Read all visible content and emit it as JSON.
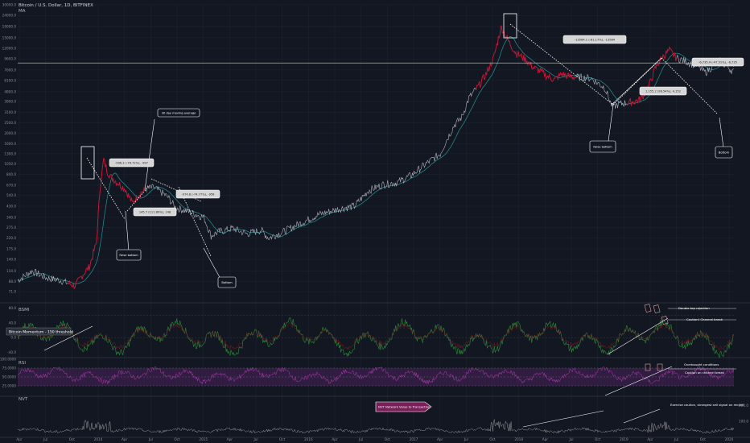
{
  "header": {
    "symbol_line": "Bitcoin / U.S. Dollar, 1D, BITFINEX",
    "indicator_line": "MA"
  },
  "colors": {
    "background": "#131722",
    "grid": "#1f2533",
    "price": "#b2b5be",
    "price_highlight": "#c8102e",
    "ma": "#2bb3b3",
    "annotation": "#ffffff",
    "smi": "#2e8b3a",
    "rsi": "#b03ab0",
    "rsi_band": "#3a1f4a",
    "nvt": "#9a9a9a",
    "nvt_label_bg": "#7a1f5a"
  },
  "chart_data": [
    {
      "type": "line",
      "pane": "price",
      "title": "Bitcoin / U.S. Dollar, 1D, BITFINEX",
      "y_scale": "log",
      "ylim": [
        60,
        30000
      ],
      "y_ticks": [
        "30000.0",
        "24000.0",
        "19000.0",
        "15000.0",
        "12000.0",
        "9600.0",
        "7600.0",
        "6100.0",
        "4800.0",
        "3900.0",
        "3100.0",
        "2500.0",
        "2000.0",
        "1600.0",
        "1300.0",
        "1050.0",
        "840.0",
        "670.0",
        "540.0",
        "430.0",
        "340.0",
        "275.0",
        "220.0",
        "175.0",
        "140.0",
        "110.0",
        "88.0",
        "71.0"
      ],
      "x_ticks": [
        "Apr",
        "Jul",
        "Oct",
        "2014",
        "Apr",
        "Jul",
        "Oct",
        "2015",
        "Apr",
        "Jul",
        "Oct",
        "2016",
        "Apr",
        "Jul",
        "Oct",
        "2017",
        "Apr",
        "Jul",
        "Oct",
        "2018",
        "Apr",
        "Jul",
        "Oct",
        "2019",
        "Apr",
        "Jul",
        "Oct",
        "2020"
      ],
      "series": [
        {
          "values": [
            [
              0.0,
              90
            ],
            [
              0.02,
              110
            ],
            [
              0.04,
              95
            ],
            [
              0.06,
              90
            ],
            [
              0.08,
              80
            ],
            [
              0.09,
              100
            ],
            [
              0.1,
              120
            ],
            [
              0.11,
              200
            ],
            [
              0.115,
              650
            ],
            [
              0.118,
              900
            ],
            [
              0.12,
              1150
            ],
            [
              0.125,
              900
            ],
            [
              0.13,
              800
            ],
            [
              0.14,
              700
            ],
            [
              0.15,
              620
            ],
            [
              0.16,
              460
            ],
            [
              0.17,
              560
            ],
            [
              0.18,
              620
            ],
            [
              0.19,
              640
            ],
            [
              0.2,
              580
            ],
            [
              0.21,
              520
            ],
            [
              0.22,
              420
            ],
            [
              0.24,
              380
            ],
            [
              0.26,
              340
            ],
            [
              0.27,
              230
            ],
            [
              0.28,
              250
            ],
            [
              0.3,
              270
            ],
            [
              0.32,
              240
            ],
            [
              0.34,
              260
            ],
            [
              0.35,
              220
            ],
            [
              0.37,
              250
            ],
            [
              0.39,
              290
            ],
            [
              0.42,
              360
            ],
            [
              0.45,
              410
            ],
            [
              0.47,
              430
            ],
            [
              0.49,
              600
            ],
            [
              0.51,
              680
            ],
            [
              0.53,
              710
            ],
            [
              0.55,
              830
            ],
            [
              0.57,
              1050
            ],
            [
              0.59,
              1300
            ],
            [
              0.6,
              1800
            ],
            [
              0.61,
              2400
            ],
            [
              0.62,
              2800
            ],
            [
              0.63,
              4200
            ],
            [
              0.645,
              5600
            ],
            [
              0.655,
              7200
            ],
            [
              0.665,
              10000
            ],
            [
              0.675,
              19000
            ],
            [
              0.685,
              14000
            ],
            [
              0.695,
              11000
            ],
            [
              0.71,
              9400
            ],
            [
              0.72,
              8000
            ],
            [
              0.73,
              7400
            ],
            [
              0.74,
              6600
            ],
            [
              0.75,
              6200
            ],
            [
              0.76,
              7000
            ],
            [
              0.77,
              6600
            ],
            [
              0.8,
              6400
            ],
            [
              0.82,
              5200
            ],
            [
              0.83,
              3500
            ],
            [
              0.84,
              3700
            ],
            [
              0.86,
              3900
            ],
            [
              0.87,
              4100
            ],
            [
              0.88,
              5200
            ],
            [
              0.89,
              7800
            ],
            [
              0.9,
              10000
            ],
            [
              0.91,
              11500
            ],
            [
              0.92,
              9800
            ],
            [
              0.935,
              9000
            ],
            [
              0.95,
              8200
            ],
            [
              0.96,
              7200
            ],
            [
              0.98,
              9200
            ],
            [
              1.0,
              7300
            ]
          ]
        }
      ],
      "annotations": [
        {
          "type": "text",
          "label": "30 day moving average"
        },
        {
          "type": "text",
          "label": "False bottom"
        },
        {
          "type": "text",
          "label": "Bottom"
        },
        {
          "type": "text",
          "label": "False bottom"
        },
        {
          "type": "text",
          "label": "Bottom"
        },
        {
          "type": "text",
          "label": "-996.3 (-76.72%), -997"
        },
        {
          "type": "text",
          "label": "-974.8 (-74.77%), -956"
        },
        {
          "type": "text",
          "label": "145.7 (111.80%), 148"
        },
        {
          "type": "text",
          "label": "-13584.1 (-81.17%), -13584"
        },
        {
          "type": "text",
          "label": "1,155.2 (96.54%), 4,152"
        },
        {
          "type": "text",
          "label": "-6,735.4 (-47.51%), -6,735"
        }
      ]
    },
    {
      "type": "line",
      "pane": "smi",
      "series_label": "BSMI",
      "y_ticks": [
        "80.0",
        "40.0",
        "0.0",
        "-40.0"
      ],
      "annotations": [
        {
          "type": "text",
          "label": "Bitcoin Momentum - 150 threshold"
        },
        {
          "type": "text",
          "label": "Double top rejection"
        },
        {
          "type": "text",
          "label": "Caution! Channel break"
        }
      ]
    },
    {
      "type": "line",
      "pane": "rsi",
      "series_label": "RSI",
      "y_ticks": [
        "100.0000",
        "75.0000",
        "50.0000",
        "25.0000"
      ],
      "annotations": [
        {
          "type": "text",
          "label": "Overbought conditions"
        },
        {
          "type": "text",
          "label": "Caution on channel break"
        }
      ]
    },
    {
      "type": "line",
      "pane": "nvt",
      "series_label": "NVT",
      "y_ticks": [
        "200.0",
        "100.0"
      ],
      "annotations": [
        {
          "type": "text",
          "label": "NVT Network Value to Transaction"
        },
        {
          "type": "text",
          "label": "Exercise caution, strongest sell signal on record"
        }
      ]
    }
  ]
}
